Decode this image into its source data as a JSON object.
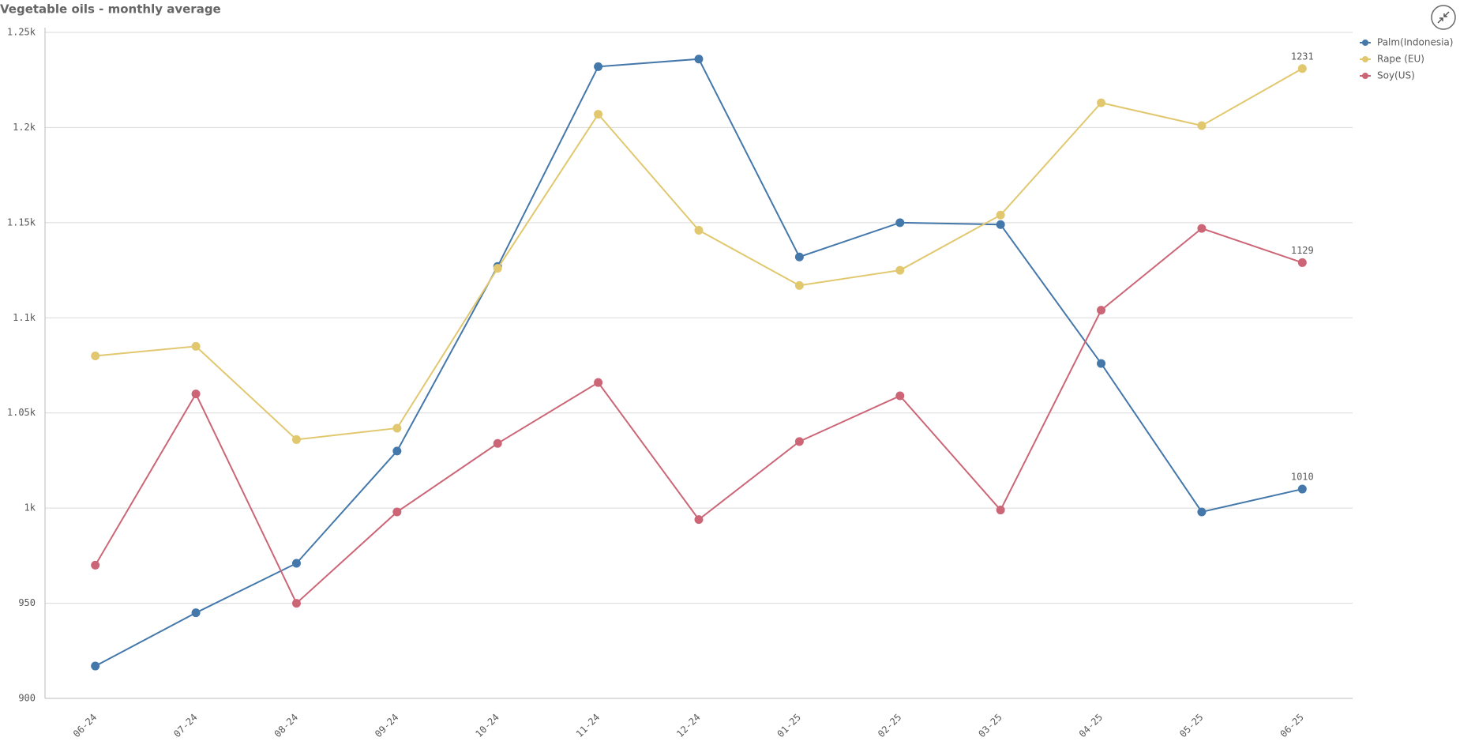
{
  "chart_data": {
    "type": "line",
    "title": "Vegetable oils - monthly average",
    "categories": [
      "06-24",
      "07-24",
      "08-24",
      "09-24",
      "10-24",
      "11-24",
      "12-24",
      "01-25",
      "02-25",
      "03-25",
      "04-25",
      "05-25",
      "06-25"
    ],
    "series": [
      {
        "name": "Palm(Indonesia)",
        "color": "#4477aa",
        "values": [
          917,
          945,
          971,
          1030,
          1127,
          1232,
          1236,
          1132,
          1150,
          1149,
          1076,
          998,
          1010
        ]
      },
      {
        "name": "Rape (EU)",
        "color": "#e1c86f",
        "values": [
          1080,
          1085,
          1036,
          1042,
          1126,
          1207,
          1146,
          1117,
          1125,
          1154,
          1213,
          1201,
          1231
        ]
      },
      {
        "name": "Soy(US)",
        "color": "#cc6677",
        "values": [
          970,
          1060,
          950,
          998,
          1034,
          1066,
          994,
          1035,
          1059,
          999,
          1104,
          1147,
          1129
        ]
      }
    ],
    "ylim": [
      900,
      1250
    ],
    "yticks": [
      900,
      950,
      {
        "value": 1000,
        "label": "1k"
      },
      {
        "value": 1050,
        "label": "1.05k"
      },
      {
        "value": 1100,
        "label": "1.1k"
      },
      {
        "value": 1150,
        "label": "1.15k"
      },
      {
        "value": 1200,
        "label": "1.2k"
      },
      {
        "value": 1250,
        "label": "1.25k"
      }
    ],
    "grid": true,
    "data_labels": "last",
    "legend": "right"
  }
}
